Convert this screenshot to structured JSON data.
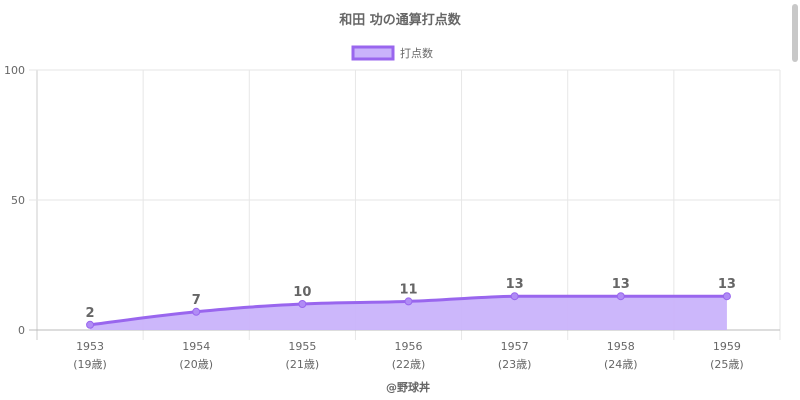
{
  "chart_data": {
    "type": "area",
    "title": "和田 功の通算打点数",
    "legend": {
      "label": "打点数",
      "placement": "top-center"
    },
    "categories": [
      "1953",
      "1954",
      "1955",
      "1956",
      "1957",
      "1958",
      "1959"
    ],
    "sublabels": [
      "(19歳)",
      "(20歳)",
      "(21歳)",
      "(22歳)",
      "(23歳)",
      "(24歳)",
      "(25歳)"
    ],
    "series": [
      {
        "name": "打点数",
        "values": [
          2,
          7,
          10,
          11,
          13,
          13,
          13
        ]
      }
    ],
    "ylim": [
      0,
      100
    ],
    "yticks": [
      "0",
      "50",
      "100"
    ],
    "grid": true,
    "colors": {
      "line": "#9966ee",
      "fill": "#c9b3fb",
      "point": "#b08cf5"
    },
    "footer": "@野球丼"
  }
}
